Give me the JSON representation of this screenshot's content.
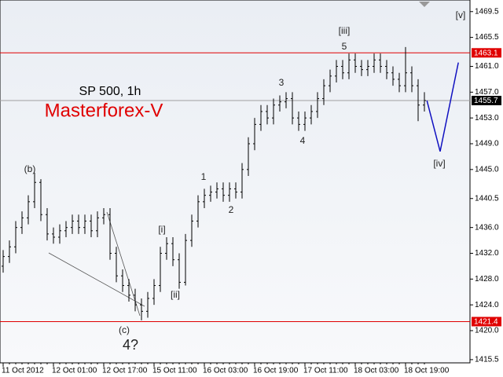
{
  "chart_data": {
    "type": "ohlc",
    "title": "SP 500, 1h",
    "subtitle": "Masterforex-V",
    "categories": [
      "11 Oct 2012",
      null,
      null,
      null,
      null,
      null,
      null,
      null,
      "12 Oct 01:00",
      null,
      null,
      null,
      null,
      null,
      null,
      null,
      "12 Oct 17:00",
      null,
      null,
      null,
      null,
      null,
      null,
      null,
      "15 Oct 11:00",
      null,
      null,
      null,
      null,
      null,
      null,
      null,
      "16 Oct 03:00",
      null,
      null,
      null,
      null,
      null,
      null,
      null,
      "16 Oct 19:00",
      null,
      null,
      null,
      null,
      null,
      null,
      null,
      "17 Oct 11:00",
      null,
      null,
      null,
      null,
      null,
      null,
      null,
      "18 Oct 03:00",
      null,
      null,
      null,
      null,
      null,
      null,
      null,
      "18 Oct 19:00",
      null,
      null,
      null
    ],
    "open": [
      1430,
      1431.5,
      1433,
      1436,
      1437.5,
      1440,
      1443,
      1438,
      1435,
      1434.5,
      1435.5,
      1436,
      1437,
      1436,
      1437,
      1435.5,
      1437.5,
      1438,
      1432,
      1428.5,
      1427,
      1425.5,
      1424,
      1423,
      1425,
      1427,
      1432,
      1433.5,
      1431,
      1427.5,
      1434,
      1437,
      1440,
      1441,
      1441.5,
      1442,
      1441,
      1442,
      1441.5,
      1445,
      1449,
      1452,
      1454,
      1453,
      1455,
      1455.5,
      1456,
      1453,
      1452,
      1453,
      1454,
      1456,
      1458,
      1459.5,
      1461,
      1460,
      1462,
      1461,
      1460.5,
      1461,
      1462,
      1461,
      1460,
      1459,
      1458,
      1460,
      1458,
      1455
    ],
    "high": [
      1432.5,
      1434,
      1437,
      1438.5,
      1441,
      1444.5,
      1443.5,
      1439,
      1436,
      1436.5,
      1437,
      1438,
      1438,
      1438,
      1438,
      1438.5,
      1439,
      1439,
      1433,
      1429.5,
      1428,
      1426.5,
      1425,
      1426,
      1428,
      1433,
      1434.5,
      1434.5,
      1432,
      1435,
      1438,
      1441,
      1442,
      1442.5,
      1443,
      1443,
      1443,
      1443,
      1446,
      1450,
      1453,
      1455,
      1455,
      1456,
      1456.5,
      1457,
      1457,
      1454,
      1454,
      1455,
      1457,
      1459,
      1460.5,
      1462,
      1462,
      1463,
      1463,
      1462,
      1462,
      1463,
      1463,
      1462,
      1461,
      1460,
      1464,
      1461,
      1459,
      1457
    ],
    "low": [
      1429,
      1430.5,
      1432,
      1435,
      1436.5,
      1439,
      1437,
      1434,
      1433.5,
      1433.5,
      1434.5,
      1435,
      1435,
      1435,
      1434.5,
      1434.5,
      1436.5,
      1431,
      1427.5,
      1426,
      1424.5,
      1423,
      1421.6,
      1422,
      1424,
      1426,
      1431,
      1430,
      1426.5,
      1427,
      1433,
      1436,
      1439,
      1440,
      1440.5,
      1440,
      1440,
      1440.5,
      1440.5,
      1444,
      1448,
      1451,
      1452,
      1452,
      1454,
      1454.5,
      1452,
      1451,
      1451,
      1452,
      1453,
      1455,
      1457,
      1458.5,
      1459,
      1459,
      1460,
      1459.5,
      1459.5,
      1460,
      1460,
      1459,
      1458,
      1457,
      1457,
      1457,
      1452.5,
      1454
    ],
    "close": [
      1431.5,
      1433,
      1436,
      1437.5,
      1440,
      1443,
      1438,
      1435,
      1434.5,
      1435.5,
      1436,
      1437,
      1436,
      1437,
      1435.5,
      1437.5,
      1438,
      1432,
      1428.5,
      1427,
      1425.5,
      1424,
      1423,
      1425,
      1427,
      1432,
      1433.5,
      1431,
      1427.5,
      1434,
      1437,
      1440,
      1441,
      1441.5,
      1442,
      1441,
      1442,
      1441.5,
      1445,
      1449,
      1452,
      1454,
      1453,
      1455,
      1455.5,
      1456,
      1453,
      1452,
      1453,
      1454,
      1456,
      1458,
      1459.5,
      1461,
      1460,
      1462,
      1461,
      1460.5,
      1461,
      1462,
      1461,
      1460,
      1459,
      1458,
      1460,
      1458,
      1455,
      1455.7
    ],
    "color": "#000000",
    "ylim": [
      1415,
      1471.3
    ],
    "yticks": [
      1469.5,
      1465.5,
      {
        "value": 1461,
        "label": "1461.0"
      },
      {
        "value": 1457,
        "label": "1457.0"
      },
      {
        "value": 1453,
        "label": "1453.0"
      },
      {
        "value": 1449,
        "label": "1449.0"
      },
      {
        "value": 1445,
        "label": "1445.0"
      },
      1440.5,
      {
        "value": 1436,
        "label": "1436.0"
      },
      {
        "value": 1432,
        "label": "1432.0"
      },
      {
        "value": 1428,
        "label": "1428.0"
      },
      {
        "value": 1424,
        "label": "1424.0"
      },
      {
        "value": 1420,
        "label": "1420.0"
      },
      1415.5
    ],
    "hlines": [
      {
        "value": 1463.1,
        "color": "#e00000"
      },
      {
        "value": 1455.7,
        "color": "#a0a0a0"
      },
      {
        "value": 1421.4,
        "color": "#e00000"
      }
    ],
    "forecast": {
      "x": [
        67.4,
        69.5,
        72.4
      ],
      "values": [
        1455.7,
        1447.8,
        1461.6
      ],
      "color": "#1010c0"
    },
    "annotations": [
      "(b)",
      "[i]",
      "[ii]",
      "1",
      "2",
      "3",
      "4",
      "5",
      "[iii]",
      "[iv]",
      "[v]",
      "(c)",
      "4?"
    ]
  }
}
